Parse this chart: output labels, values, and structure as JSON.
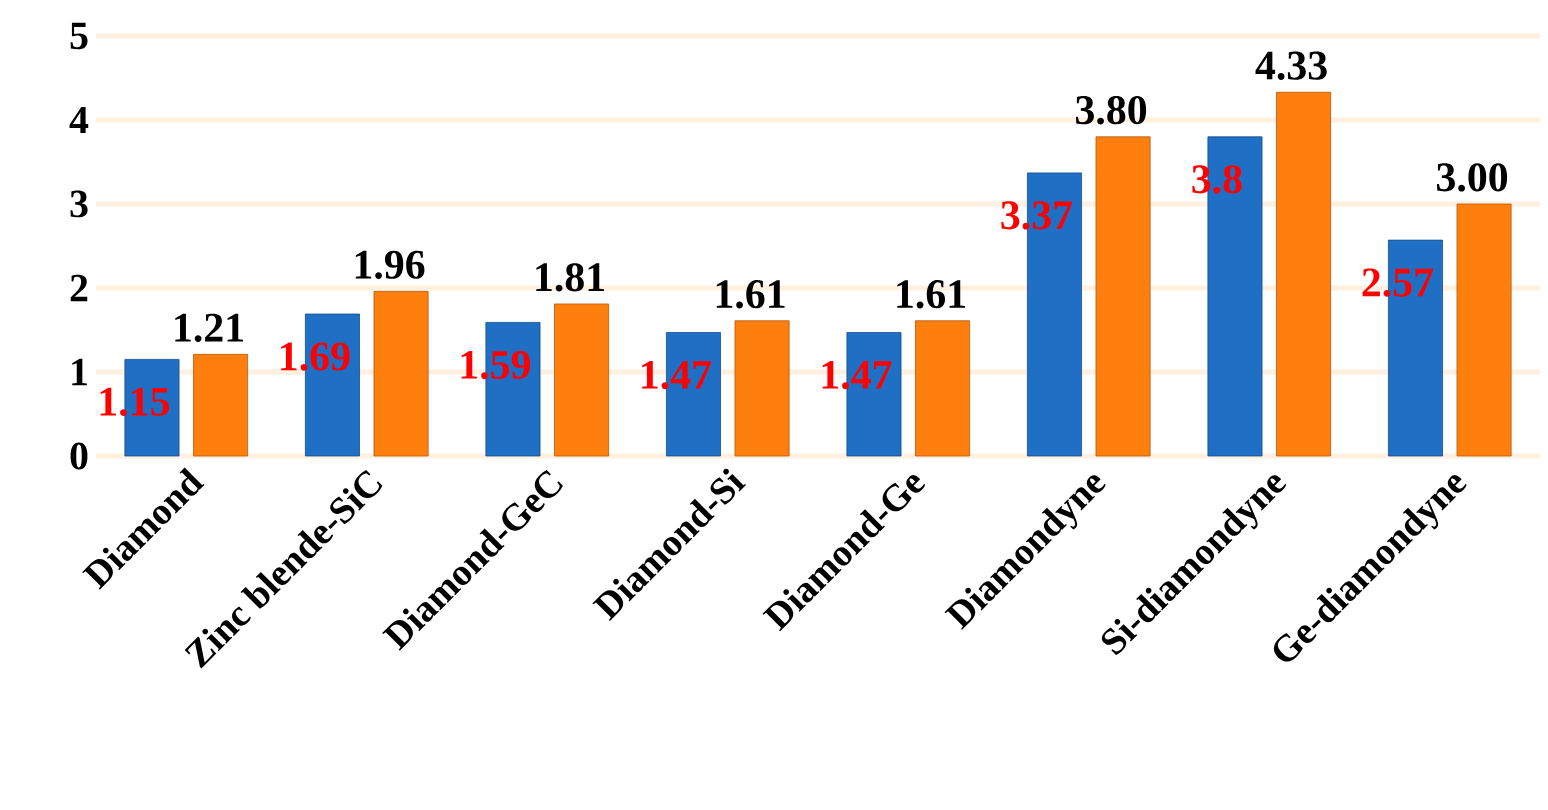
{
  "chart_data": {
    "type": "bar",
    "categories": [
      "Diamond",
      "Zinc blende-SiC",
      "Diamond-GeC",
      "Diamond-Si",
      "Diamond-Ge",
      "Diamondyne",
      "Si-diamondyne",
      "Ge-diamondyne"
    ],
    "series": [
      {
        "color": "#1f6fc5",
        "values": [
          1.15,
          1.69,
          1.59,
          1.47,
          1.47,
          3.37,
          3.8,
          2.57
        ],
        "value_labels": [
          "1.15",
          "1.69",
          "1.59",
          "1.47",
          "1.47",
          "3.37",
          "3.8",
          "2.57"
        ]
      },
      {
        "color": "#ff7f0e",
        "values": [
          1.21,
          1.96,
          1.81,
          1.61,
          1.61,
          3.8,
          4.33,
          3.0
        ],
        "value_labels": [
          "1.21",
          "1.96",
          "1.81",
          "1.61",
          "1.61",
          "3.80",
          "4.33",
          "3.00"
        ]
      }
    ],
    "ylim": [
      0,
      5
    ],
    "yticks": [
      0,
      1,
      2,
      3,
      4,
      5
    ],
    "grid": "y"
  }
}
